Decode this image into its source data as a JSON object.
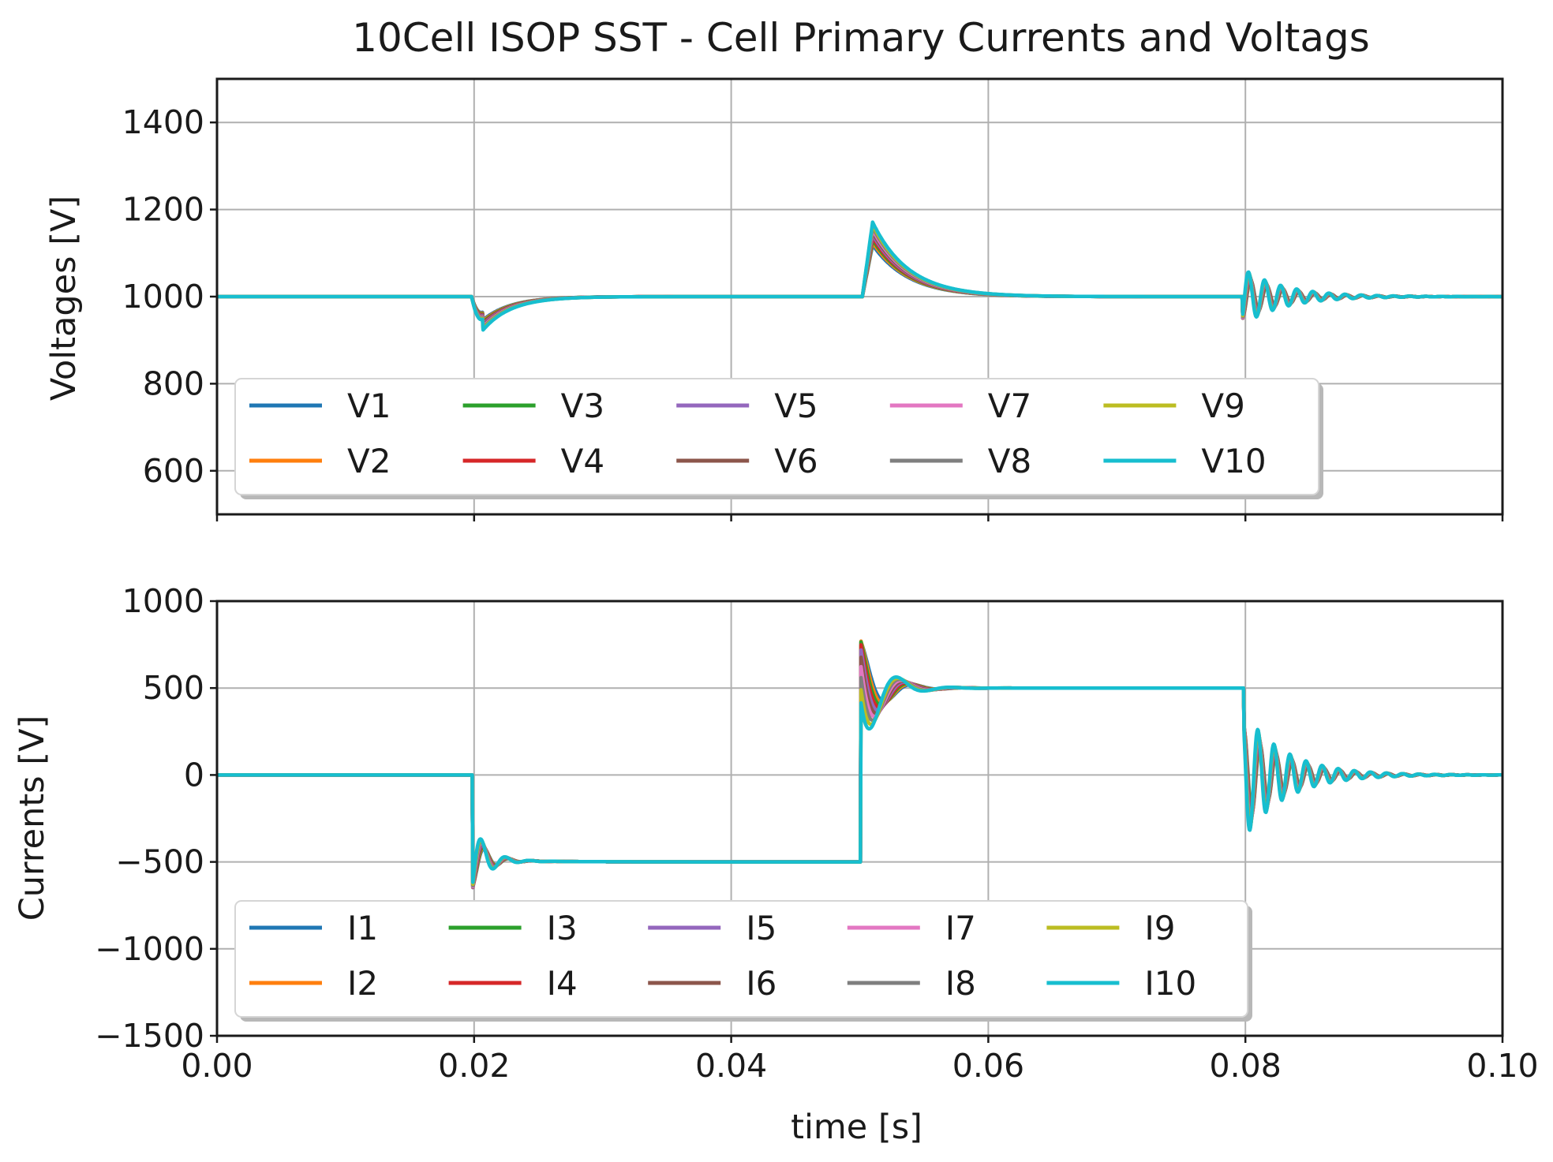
{
  "chart_data": [
    {
      "type": "line",
      "title": "10Cell ISOP SST - Cell Primary Currents and Voltags",
      "xlabel": "",
      "ylabel": "Voltages [V]",
      "xlim": [
        0,
        0.1
      ],
      "ylim": [
        500,
        1500
      ],
      "xticks": [
        0.0,
        0.02,
        0.04,
        0.06,
        0.08,
        0.1
      ],
      "yticks": [
        600,
        800,
        1000,
        1200,
        1400
      ],
      "ytick_labels": [
        "600",
        "800",
        "1000",
        "1200",
        "1400"
      ],
      "grid": true,
      "legend_location": "lower-left",
      "legend_columns": 5,
      "events": [
        {
          "t": 0.02,
          "response": "dip",
          "peak": 935,
          "settle_time": 0.007
        },
        {
          "t": 0.05,
          "response": "overshoot",
          "peak": 1145,
          "settle_time": 0.01
        },
        {
          "t": 0.08,
          "response": "ringing",
          "peak": 1035,
          "trough": 945,
          "settle_time": 0.01
        }
      ],
      "series": [
        {
          "name": "V1",
          "color": "#1f77b4",
          "baseline": 1000
        },
        {
          "name": "V2",
          "color": "#ff7f0e",
          "baseline": 1000
        },
        {
          "name": "V3",
          "color": "#2ca02c",
          "baseline": 1000
        },
        {
          "name": "V4",
          "color": "#d62728",
          "baseline": 1000
        },
        {
          "name": "V5",
          "color": "#9467bd",
          "baseline": 1000
        },
        {
          "name": "V6",
          "color": "#8c564b",
          "baseline": 1000
        },
        {
          "name": "V7",
          "color": "#e377c2",
          "baseline": 1000
        },
        {
          "name": "V8",
          "color": "#7f7f7f",
          "baseline": 1000
        },
        {
          "name": "V9",
          "color": "#bcbd22",
          "baseline": 1000
        },
        {
          "name": "V10",
          "color": "#17becf",
          "baseline": 1000
        }
      ]
    },
    {
      "type": "line",
      "title": "",
      "xlabel": "time [s]",
      "ylabel": "Currents [V]",
      "xlim": [
        0,
        0.1
      ],
      "ylim": [
        -1500,
        1000
      ],
      "xticks": [
        0.0,
        0.02,
        0.04,
        0.06,
        0.08,
        0.1
      ],
      "xtick_labels": [
        "0.00",
        "0.02",
        "0.04",
        "0.06",
        "0.08",
        "0.10"
      ],
      "yticks": [
        -1500,
        -1000,
        -500,
        0,
        500,
        1000
      ],
      "ytick_labels": [
        "−1500",
        "−1000",
        "−500",
        "0",
        "500",
        "1000"
      ],
      "grid": true,
      "legend_location": "lower-left",
      "legend_columns": 5,
      "levels": [
        {
          "t_start": 0.0,
          "t_end": 0.02,
          "value": 0
        },
        {
          "t_start": 0.02,
          "t_end": 0.05,
          "value": -500
        },
        {
          "t_start": 0.05,
          "t_end": 0.08,
          "value": 500
        },
        {
          "t_start": 0.08,
          "t_end": 0.1,
          "value": 0
        }
      ],
      "events": [
        {
          "t": 0.02,
          "response": "undershoot",
          "peak": -680,
          "settle_time": 0.004
        },
        {
          "t": 0.05,
          "response": "overshoot",
          "peak": 830,
          "trough": 180,
          "settle_time": 0.007
        },
        {
          "t": 0.08,
          "response": "ringing",
          "peak": 320,
          "trough": -300,
          "settle_time": 0.012
        }
      ],
      "series": [
        {
          "name": "I1",
          "color": "#1f77b4"
        },
        {
          "name": "I2",
          "color": "#ff7f0e"
        },
        {
          "name": "I3",
          "color": "#2ca02c"
        },
        {
          "name": "I4",
          "color": "#d62728"
        },
        {
          "name": "I5",
          "color": "#9467bd"
        },
        {
          "name": "I6",
          "color": "#8c564b"
        },
        {
          "name": "I7",
          "color": "#e377c2"
        },
        {
          "name": "I8",
          "color": "#7f7f7f"
        },
        {
          "name": "I9",
          "color": "#bcbd22"
        },
        {
          "name": "I10",
          "color": "#17becf"
        }
      ]
    }
  ]
}
